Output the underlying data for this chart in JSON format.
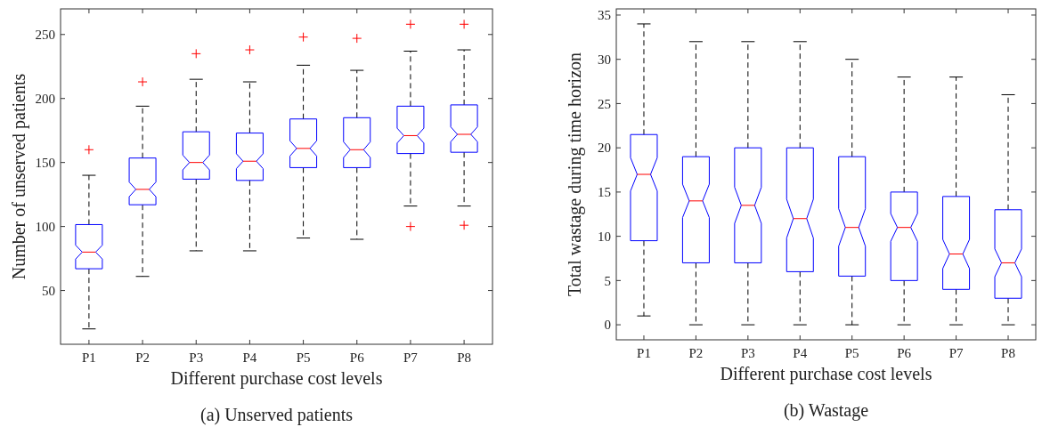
{
  "chart_data": [
    {
      "type": "box",
      "title": "(a) Unserved patients",
      "xlabel": "Different purchase cost levels",
      "ylabel": "Number of unserved patients",
      "categories": [
        "P1",
        "P2",
        "P3",
        "P4",
        "P5",
        "P6",
        "P7",
        "P8"
      ],
      "ylim": [
        8,
        270
      ],
      "yticks": [
        50,
        100,
        150,
        200,
        250
      ],
      "grid": false,
      "series": [
        {
          "color": "#0000ff",
          "boxes": [
            {
              "low": 20,
              "q1": 67,
              "median": 80,
              "q3": 101.5,
              "high": 140,
              "outliers": [
                160
              ]
            },
            {
              "low": 61,
              "q1": 117,
              "median": 129,
              "q3": 153.5,
              "high": 194,
              "outliers": [
                213
              ]
            },
            {
              "low": 81,
              "q1": 137,
              "median": 150,
              "q3": 174,
              "high": 215,
              "outliers": [
                235
              ]
            },
            {
              "low": 81,
              "q1": 136,
              "median": 151,
              "q3": 173,
              "high": 213,
              "outliers": [
                238
              ]
            },
            {
              "low": 91,
              "q1": 146,
              "median": 161,
              "q3": 184,
              "high": 226,
              "outliers": [
                248
              ]
            },
            {
              "low": 90,
              "q1": 146,
              "median": 160,
              "q3": 185,
              "high": 222,
              "outliers": [
                247
              ]
            },
            {
              "low": 116,
              "q1": 157,
              "median": 171,
              "q3": 194,
              "high": 237,
              "outliers": [
                258,
                100
              ]
            },
            {
              "low": 116,
              "q1": 158,
              "median": 172,
              "q3": 195,
              "high": 238,
              "outliers": [
                258,
                101
              ]
            }
          ]
        }
      ]
    },
    {
      "type": "box",
      "title": "(b) Wastage",
      "xlabel": "Different purchase cost levels",
      "ylabel": "Total wastage during time horizon",
      "categories": [
        "P1",
        "P2",
        "P3",
        "P4",
        "P5",
        "P6",
        "P7",
        "P8"
      ],
      "ylim": [
        -1.7,
        35.7
      ],
      "yticks": [
        0,
        5,
        10,
        15,
        20,
        25,
        30,
        35
      ],
      "grid": false,
      "series": [
        {
          "color": "#0000ff",
          "boxes": [
            {
              "low": 1,
              "q1": 9.5,
              "median": 17,
              "q3": 21.5,
              "high": 34
            },
            {
              "low": 0,
              "q1": 7,
              "median": 14,
              "q3": 19,
              "high": 32
            },
            {
              "low": 0,
              "q1": 7,
              "median": 13.5,
              "q3": 20,
              "high": 32
            },
            {
              "low": 0,
              "q1": 6,
              "median": 12,
              "q3": 20,
              "high": 32
            },
            {
              "low": 0,
              "q1": 5.5,
              "median": 11,
              "q3": 19,
              "high": 30
            },
            {
              "low": 0,
              "q1": 5,
              "median": 11,
              "q3": 15,
              "high": 28
            },
            {
              "low": 0,
              "q1": 4,
              "median": 8,
              "q3": 14.5,
              "high": 28
            },
            {
              "low": 0,
              "q1": 3,
              "median": 7,
              "q3": 13,
              "high": 26
            }
          ]
        }
      ]
    }
  ]
}
